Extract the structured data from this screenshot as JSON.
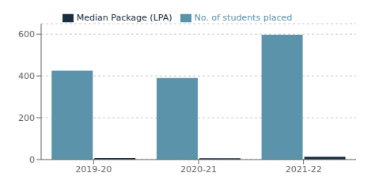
{
  "chart_data": {
    "type": "bar",
    "categories": [
      "2019-20",
      "2020-21",
      "2021-22"
    ],
    "series": [
      {
        "name": "No. of students placed",
        "color": "#5b93aa",
        "values": [
          425,
          390,
          597
        ]
      },
      {
        "name": "Median Package (LPA)",
        "color": "#1a2f3f",
        "values": [
          8,
          7,
          13
        ]
      }
    ],
    "ylim": [
      0,
      650
    ],
    "yticks": [
      0,
      200,
      400,
      600
    ],
    "grid": true,
    "legend": "top"
  }
}
